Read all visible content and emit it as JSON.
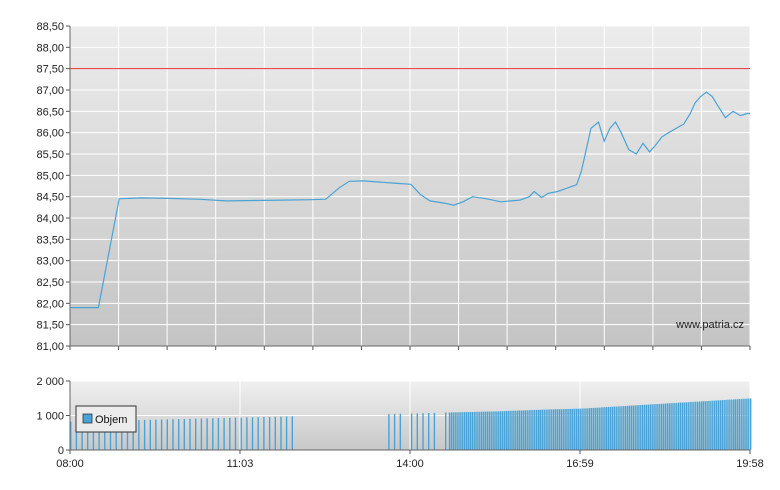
{
  "chart_data": [
    {
      "type": "line",
      "title": "",
      "watermark": "www.patria.cz",
      "ylim": [
        81.0,
        88.5
      ],
      "ytick_labels": [
        "81,00",
        "81,50",
        "82,00",
        "82,50",
        "83,00",
        "83,50",
        "84,00",
        "84,50",
        "85,00",
        "85,50",
        "86,00",
        "86,50",
        "87,00",
        "87,50",
        "88,00",
        "88,50"
      ],
      "reference_line": {
        "value": 87.5,
        "color": "#e53030"
      },
      "series": [
        {
          "color": "#4aa3d6",
          "points": [
            [
              "08:00",
              81.9
            ],
            [
              "08:30",
              81.9
            ],
            [
              "08:52",
              84.45
            ],
            [
              "09:15",
              84.47
            ],
            [
              "09:45",
              84.46
            ],
            [
              "10:15",
              84.44
            ],
            [
              "10:45",
              84.4
            ],
            [
              "11:15",
              84.41
            ],
            [
              "11:45",
              84.42
            ],
            [
              "12:15",
              84.43
            ],
            [
              "12:30",
              84.44
            ],
            [
              "12:45",
              84.72
            ],
            [
              "12:55",
              84.86
            ],
            [
              "13:10",
              84.87
            ],
            [
              "13:40",
              84.82
            ],
            [
              "14:00",
              84.79
            ],
            [
              "14:10",
              84.55
            ],
            [
              "14:20",
              84.4
            ],
            [
              "14:35",
              84.35
            ],
            [
              "14:45",
              84.3
            ],
            [
              "14:55",
              84.38
            ],
            [
              "15:05",
              84.5
            ],
            [
              "15:20",
              84.45
            ],
            [
              "15:35",
              84.38
            ],
            [
              "15:55",
              84.42
            ],
            [
              "16:05",
              84.5
            ],
            [
              "16:10",
              84.62
            ],
            [
              "16:18",
              84.48
            ],
            [
              "16:25",
              84.58
            ],
            [
              "16:35",
              84.62
            ],
            [
              "16:45",
              84.7
            ],
            [
              "16:55",
              84.78
            ],
            [
              "17:00",
              85.1
            ],
            [
              "17:05",
              85.6
            ],
            [
              "17:10",
              86.1
            ],
            [
              "17:18",
              86.25
            ],
            [
              "17:24",
              85.8
            ],
            [
              "17:30",
              86.1
            ],
            [
              "17:36",
              86.25
            ],
            [
              "17:42",
              86.0
            ],
            [
              "17:50",
              85.6
            ],
            [
              "17:58",
              85.5
            ],
            [
              "18:05",
              85.75
            ],
            [
              "18:12",
              85.55
            ],
            [
              "18:18",
              85.7
            ],
            [
              "18:25",
              85.9
            ],
            [
              "18:32",
              86.0
            ],
            [
              "18:40",
              86.1
            ],
            [
              "18:48",
              86.2
            ],
            [
              "18:55",
              86.45
            ],
            [
              "19:00",
              86.7
            ],
            [
              "19:06",
              86.85
            ],
            [
              "19:12",
              86.95
            ],
            [
              "19:18",
              86.85
            ],
            [
              "19:25",
              86.6
            ],
            [
              "19:32",
              86.35
            ],
            [
              "19:40",
              86.5
            ],
            [
              "19:48",
              86.4
            ],
            [
              "19:55",
              86.45
            ],
            [
              "23:00",
              86.45
            ]
          ]
        }
      ]
    },
    {
      "type": "bar",
      "ylim": [
        0,
        2000
      ],
      "ytick_labels": [
        "0",
        "1 000",
        "2 000"
      ],
      "xtick_labels": [
        "08:00",
        "11:03",
        "14:00",
        "16:59",
        "19:58"
      ],
      "legend": {
        "label": "Objem",
        "color": "#4aa3d6"
      },
      "series": [
        {
          "name": "Objem",
          "color": "#4aa3d6",
          "values": [
            [
              0,
              820
            ],
            [
              15,
              830
            ],
            [
              30,
              840
            ],
            [
              60,
              860
            ],
            [
              90,
              880
            ],
            [
              120,
              900
            ],
            [
              150,
              920
            ],
            [
              180,
              940
            ],
            [
              210,
              960
            ],
            [
              240,
              980
            ],
            [
              270,
              1000
            ],
            [
              300,
              1020
            ],
            [
              330,
              1040
            ],
            [
              360,
              1060
            ],
            [
              390,
              1080
            ],
            [
              420,
              1100
            ],
            [
              450,
              1120
            ],
            [
              480,
              1150
            ],
            [
              510,
              1180
            ],
            [
              540,
              1200
            ],
            [
              570,
              1250
            ],
            [
              600,
              1300
            ],
            [
              630,
              1350
            ],
            [
              660,
              1400
            ],
            [
              690,
              1450
            ],
            [
              720,
              1500
            ],
            [
              750,
              1550
            ],
            [
              780,
              1600
            ],
            [
              810,
              1650
            ],
            [
              840,
              1700
            ],
            [
              870,
              1750
            ],
            [
              900,
              1760
            ],
            [
              958,
              1760
            ]
          ]
        }
      ]
    }
  ]
}
